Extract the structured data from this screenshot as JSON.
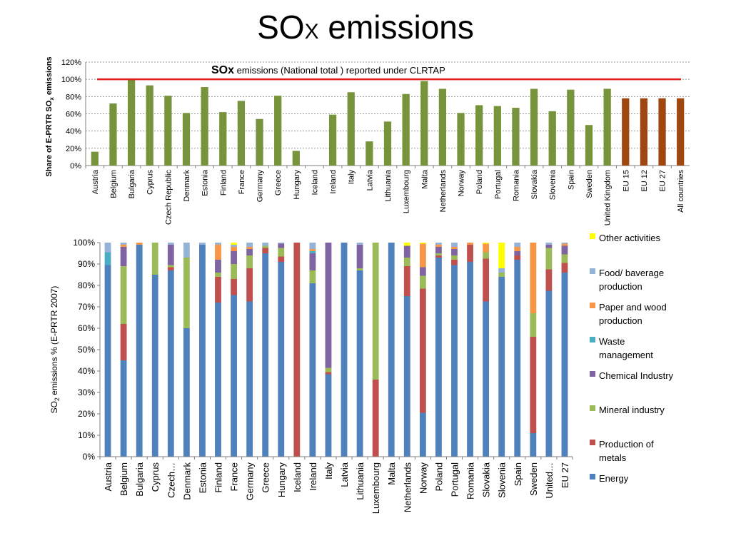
{
  "slide": {
    "title_main": "SO",
    "title_sub": "X",
    "title_rest": " emissions"
  },
  "chart_data": [
    {
      "type": "bar",
      "ylabel": "Share of E-PRTR SOx emissions",
      "ylabel_main": "Share of E-PRTR SO",
      "ylabel_sub": "x",
      "ylabel_rest": " emissions",
      "ylim": [
        0,
        120
      ],
      "yticks": [
        "0%",
        "20%",
        "40%",
        "60%",
        "80%",
        "100%",
        "120%"
      ],
      "grid": true,
      "annotation": {
        "bold": "SOx",
        "text": " emissions (National total ) reported under CLRTAP",
        "line_value": 100,
        "color": "#e31a1c"
      },
      "categories": [
        "Austria",
        "Belgium",
        "Bulgaria",
        "Cyprus",
        "Czech Republic",
        "Denmark",
        "Estonia",
        "Finland",
        "France",
        "Germany",
        "Greece",
        "Hungary",
        "Iceland",
        "Ireland",
        "Italy",
        "Latvia",
        "Lithuania",
        "Luxembourg",
        "Malta",
        "Netherlands",
        "Norway",
        "Poland",
        "Portugal",
        "Romania",
        "Slovakia",
        "Slovenia",
        "Spain",
        "Sweden",
        "United Kingdom",
        "EU 15",
        "EU 12",
        "EU 27",
        "All countries"
      ],
      "values": [
        16,
        72,
        101,
        93,
        81,
        61,
        91,
        62,
        75,
        54,
        81,
        17,
        0,
        59,
        85,
        28,
        51,
        83,
        98,
        89,
        61,
        70,
        69,
        67,
        89,
        63,
        88,
        47,
        89,
        78,
        78,
        78,
        78
      ],
      "colors": {
        "country": "#77933c",
        "aggregate": "#a0470f"
      },
      "aggregate_categories": [
        "EU 15",
        "EU 12",
        "EU 27",
        "All countries"
      ]
    },
    {
      "type": "bar",
      "stacked": true,
      "ylabel": "SO2 emissions % (E-PRTR 2007)",
      "ylabel_main": "SO",
      "ylabel_sub": "2",
      "ylabel_rest": " emissions % (E-PRTR 2007)",
      "ylim": [
        0,
        100
      ],
      "yticks": [
        "0%",
        "10%",
        "20%",
        "30%",
        "40%",
        "50%",
        "60%",
        "70%",
        "80%",
        "90%",
        "100%"
      ],
      "grid": false,
      "legend_placement": "right",
      "categories": [
        "Austria",
        "Belgium",
        "Bulgaria",
        "Cyprus",
        "Czech…",
        "Denmark",
        "Estonia",
        "Finland",
        "France",
        "Germany",
        "Greece",
        "Hungary",
        "Iceland",
        "Ireland",
        "Italy",
        "Latvia",
        "Lithuania",
        "Luxembourg",
        "Malta",
        "Netherlands",
        "Norway",
        "Poland",
        "Portugal",
        "Romania",
        "Slovakia",
        "Slovenia",
        "Spain",
        "Sweden",
        "United…",
        "EU 27"
      ],
      "series": [
        {
          "name": "Energy",
          "color": "#4f81bd",
          "values": [
            89.5,
            45,
            99,
            85,
            87,
            60,
            99,
            72,
            75.5,
            72.5,
            95,
            91,
            0,
            81,
            38.5,
            100,
            87,
            0,
            100,
            75,
            20.5,
            93,
            89.5,
            91,
            72.5,
            84,
            92,
            11,
            77.5,
            86
          ]
        },
        {
          "name": "Production of metals",
          "color": "#c0504d",
          "values": [
            0,
            17,
            0,
            0,
            1.5,
            0,
            0,
            12,
            7.5,
            15.5,
            2.5,
            2.5,
            100,
            0,
            1,
            0,
            0,
            36,
            0,
            14,
            58,
            1,
            2.5,
            8,
            20,
            0,
            2,
            45,
            10,
            4.5
          ]
        },
        {
          "name": "Mineral industry",
          "color": "#9bbb59",
          "values": [
            0,
            27,
            0,
            15,
            1,
            33,
            0,
            2,
            7,
            6,
            1,
            4,
            0,
            6,
            2,
            0,
            1,
            64,
            0,
            4,
            6,
            1,
            2,
            0,
            3,
            2,
            0,
            11,
            10,
            4
          ]
        },
        {
          "name": "Chemical Industry",
          "color": "#8064a2",
          "values": [
            0,
            9,
            0,
            0,
            9.5,
            0,
            0,
            6,
            6,
            3,
            0,
            2,
            0,
            8,
            58.5,
            0,
            11,
            0,
            0,
            5.5,
            4,
            3,
            3,
            0,
            0,
            0,
            2,
            0,
            1.5,
            4
          ]
        },
        {
          "name": "Waste management",
          "color": "#4bacc6",
          "values": [
            6,
            0,
            0,
            0,
            0,
            0,
            0,
            0,
            0,
            0,
            0,
            0,
            0,
            1,
            0,
            0,
            0,
            0,
            0,
            0,
            0,
            0,
            0,
            0,
            0,
            0,
            0,
            0,
            0,
            0
          ]
        },
        {
          "name": "Paper and wood production",
          "color": "#f79646",
          "values": [
            0,
            1,
            1,
            0,
            0,
            0,
            0,
            7,
            2,
            1,
            0,
            0,
            0,
            1,
            0,
            0,
            0,
            0,
            0,
            0,
            11,
            1,
            1,
            1,
            4,
            0,
            2,
            33,
            0,
            1
          ]
        },
        {
          "name": "Food/ baverage production",
          "color": "#95b3d7",
          "values": [
            4.5,
            1,
            0,
            0,
            1,
            7,
            1,
            1,
            1,
            2,
            1.5,
            0.5,
            0,
            3,
            0,
            0,
            1,
            0,
            0,
            0,
            0,
            1,
            2,
            0,
            0,
            2,
            2,
            0,
            1,
            0.5
          ]
        },
        {
          "name": "Other activities",
          "color": "#ffff00",
          "values": [
            0,
            0,
            0,
            0,
            0,
            0,
            0,
            0,
            1,
            0,
            0,
            0,
            0,
            0,
            0,
            0,
            0,
            0,
            0,
            1.5,
            0.5,
            0,
            0,
            0,
            0.5,
            12,
            0,
            0,
            0,
            0
          ]
        }
      ],
      "legend_order": [
        "Other activities",
        "Food/ baverage production",
        "Paper and wood production",
        "Waste management",
        "Chemical Industry",
        "Mineral industry",
        "Production of metals",
        "Energy"
      ],
      "legend_lines": {
        "Other activities": [
          "Other activities"
        ],
        "Food/ baverage production": [
          "Food/ baverage",
          "production"
        ],
        "Paper and wood production": [
          "Paper and wood",
          "production"
        ],
        "Waste management": [
          "Waste",
          "management"
        ],
        "Chemical Industry": [
          "Chemical Industry"
        ],
        "Mineral industry": [
          "Mineral industry"
        ],
        "Production of metals": [
          "Production of",
          "metals"
        ],
        "Energy": [
          "Energy"
        ]
      }
    }
  ]
}
